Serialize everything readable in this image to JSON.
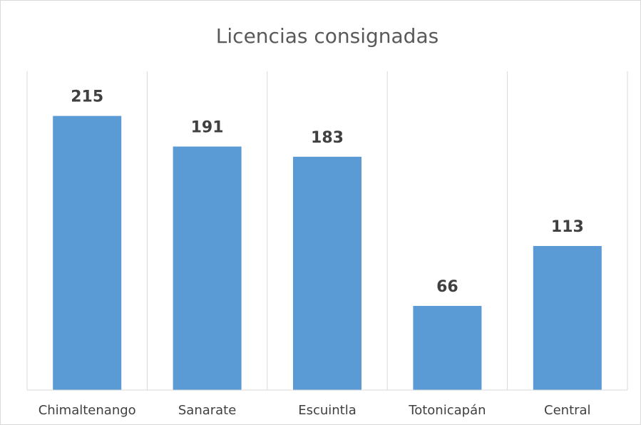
{
  "chart_data": {
    "type": "bar",
    "title": "Licencias consignadas",
    "categories": [
      "Chimaltenango",
      "Sanarate",
      "Escuintla",
      "Totonicapán",
      "Central"
    ],
    "values": [
      215,
      191,
      183,
      66,
      113
    ],
    "color": "#5b9bd5",
    "ylim": [
      0,
      250
    ],
    "data_labels": true,
    "category_gridlines": true
  }
}
